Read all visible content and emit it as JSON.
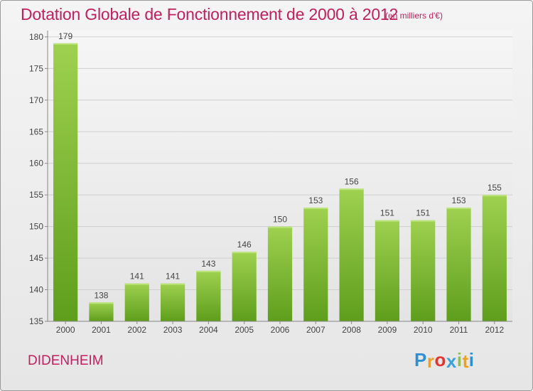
{
  "header": {
    "title": "Dotation Globale de Fonctionnement de 2000 à 2012",
    "unit_note": "(en milliers d'€)"
  },
  "footer": {
    "commune": "DIDENHEIM",
    "logo_letters": [
      "P",
      "r",
      "o",
      "x",
      "i",
      "t",
      "i"
    ],
    "logo_colors": [
      "#2f8fd4",
      "#f0a020",
      "#e3342f",
      "#3aa1d9",
      "#8bc53f",
      "#f0a020",
      "#2f8fd4"
    ]
  },
  "chart_data": {
    "type": "bar",
    "categories": [
      "2000",
      "2001",
      "2002",
      "2003",
      "2004",
      "2005",
      "2006",
      "2007",
      "2008",
      "2009",
      "2010",
      "2011",
      "2012"
    ],
    "values": [
      179,
      138,
      141,
      141,
      143,
      146,
      150,
      153,
      156,
      151,
      151,
      153,
      155
    ],
    "ylim": [
      135,
      181
    ],
    "yticks": [
      135,
      140,
      145,
      150,
      155,
      160,
      165,
      170,
      175,
      180
    ],
    "grid": true,
    "bar_color_light": "#9ed14f",
    "bar_color_dark": "#5e9e1c",
    "title_color": "#c0215e"
  }
}
